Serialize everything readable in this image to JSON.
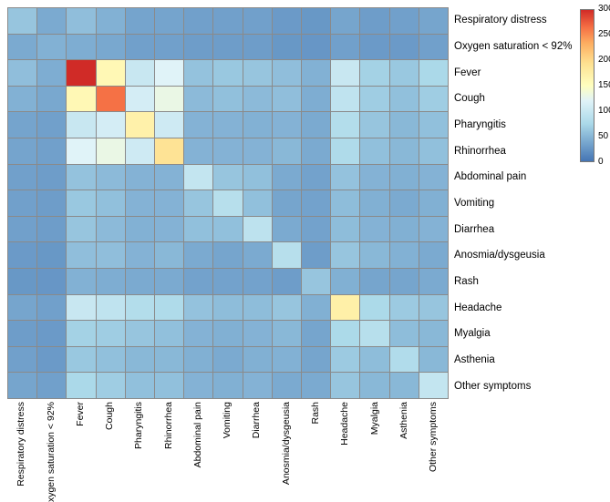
{
  "chart_data": {
    "type": "heatmap",
    "title": "",
    "description": "Symptom co-occurrence heatmap",
    "labels": [
      "Respiratory distress",
      "Oxygen saturation < 92%",
      "Fever",
      "Cough",
      "Pharyngitis",
      "Rhinorrhea",
      "Abdominal pain",
      "Vomiting",
      "Diarrhea",
      "Anosmia/dysgeusia",
      "Rash",
      "Headache",
      "Myalgia",
      "Asthenia",
      "Other symptoms"
    ],
    "vmin": 0,
    "vmax": 300,
    "colorbar_ticks": [
      300,
      250,
      200,
      150,
      100,
      50,
      0
    ],
    "colorbar_position": "top-right",
    "grid_lines": true,
    "grid_line_color": "#8a8a8a",
    "colormap_stops": [
      [
        0.0,
        "#4575b4"
      ],
      [
        0.25,
        "#abd9e9"
      ],
      [
        0.4,
        "#e0f3f8"
      ],
      [
        0.5,
        "#ffffbf"
      ],
      [
        0.65,
        "#fee090"
      ],
      [
        0.78,
        "#fdae61"
      ],
      [
        0.89,
        "#f46d43"
      ],
      [
        1.0,
        "#d02b27"
      ]
    ],
    "matrix": [
      [
        60,
        40,
        55,
        45,
        35,
        35,
        32,
        32,
        32,
        28,
        26,
        36,
        30,
        32,
        36
      ],
      [
        40,
        45,
        42,
        38,
        32,
        32,
        30,
        30,
        30,
        26,
        25,
        32,
        28,
        28,
        32
      ],
      [
        55,
        42,
        300,
        160,
        100,
        120,
        58,
        62,
        60,
        55,
        45,
        100,
        70,
        62,
        75
      ],
      [
        45,
        38,
        160,
        265,
        110,
        130,
        52,
        56,
        52,
        55,
        42,
        92,
        66,
        56,
        66
      ],
      [
        35,
        32,
        100,
        110,
        170,
        105,
        46,
        46,
        45,
        46,
        40,
        82,
        60,
        50,
        56
      ],
      [
        35,
        32,
        120,
        130,
        105,
        190,
        46,
        46,
        46,
        50,
        40,
        78,
        56,
        50,
        56
      ],
      [
        32,
        30,
        58,
        52,
        46,
        46,
        95,
        60,
        56,
        40,
        34,
        58,
        46,
        44,
        46
      ],
      [
        32,
        30,
        62,
        56,
        46,
        46,
        60,
        85,
        56,
        36,
        34,
        54,
        44,
        40,
        44
      ],
      [
        32,
        30,
        60,
        52,
        45,
        46,
        56,
        56,
        90,
        40,
        34,
        54,
        46,
        44,
        46
      ],
      [
        28,
        26,
        55,
        55,
        46,
        50,
        40,
        36,
        40,
        85,
        30,
        60,
        50,
        45,
        40
      ],
      [
        26,
        25,
        45,
        42,
        40,
        40,
        34,
        34,
        34,
        30,
        60,
        44,
        36,
        36,
        40
      ],
      [
        36,
        32,
        100,
        92,
        82,
        78,
        58,
        54,
        54,
        60,
        44,
        172,
        76,
        64,
        60
      ],
      [
        30,
        28,
        70,
        66,
        60,
        56,
        46,
        44,
        46,
        50,
        36,
        76,
        85,
        54,
        50
      ],
      [
        32,
        28,
        62,
        56,
        50,
        50,
        44,
        40,
        44,
        45,
        36,
        64,
        54,
        80,
        50
      ],
      [
        36,
        32,
        75,
        66,
        56,
        56,
        46,
        44,
        46,
        40,
        40,
        60,
        50,
        50,
        95
      ]
    ]
  }
}
